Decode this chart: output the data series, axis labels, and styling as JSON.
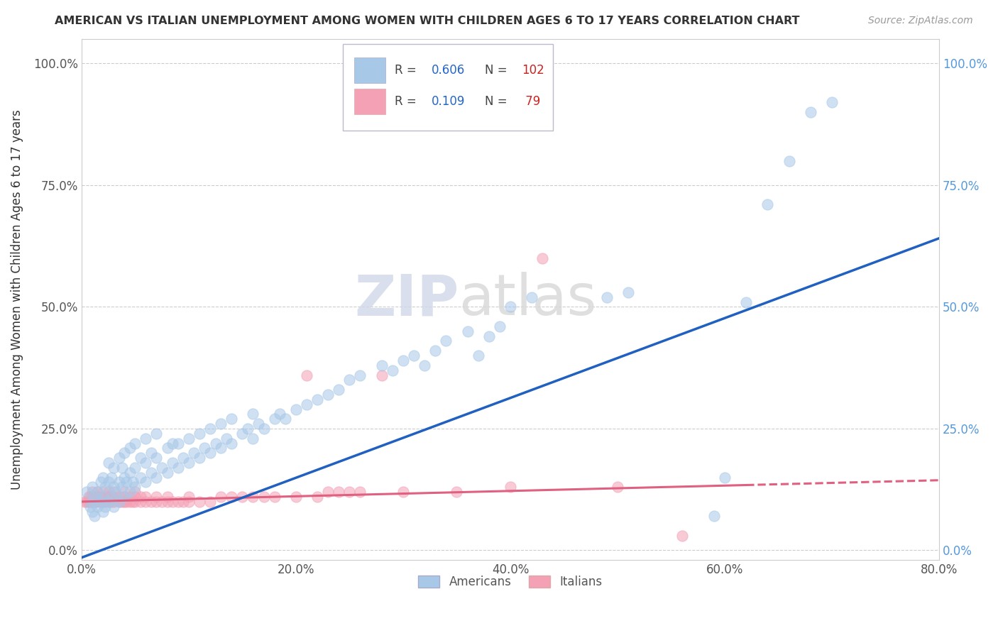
{
  "title": "AMERICAN VS ITALIAN UNEMPLOYMENT AMONG WOMEN WITH CHILDREN AGES 6 TO 17 YEARS CORRELATION CHART",
  "source": "Source: ZipAtlas.com",
  "ylabel": "Unemployment Among Women with Children Ages 6 to 17 years",
  "xmin": 0.0,
  "xmax": 0.8,
  "ymin": -0.02,
  "ymax": 1.05,
  "xticks": [
    0.0,
    0.2,
    0.4,
    0.6,
    0.8
  ],
  "xtick_labels": [
    "0.0%",
    "20.0%",
    "40.0%",
    "60.0%",
    "80.0%"
  ],
  "yticks": [
    0.0,
    0.25,
    0.5,
    0.75,
    1.0
  ],
  "ytick_labels": [
    "0.0%",
    "25.0%",
    "50.0%",
    "75.0%",
    "100.0%"
  ],
  "american_color": "#a8c8e8",
  "italian_color": "#f4a0b5",
  "american_line_color": "#2060c0",
  "italian_line_color": "#e06080",
  "watermark_zip": "ZIP",
  "watermark_atlas": "atlas",
  "background_color": "#ffffff",
  "americans_label": "Americans",
  "italians_label": "Italians",
  "american_slope": 0.82,
  "american_intercept": -0.015,
  "italian_slope": 0.055,
  "italian_intercept": 0.1,
  "american_points": [
    [
      0.005,
      0.12
    ],
    [
      0.008,
      0.09
    ],
    [
      0.01,
      0.08
    ],
    [
      0.01,
      0.1
    ],
    [
      0.01,
      0.13
    ],
    [
      0.012,
      0.07
    ],
    [
      0.012,
      0.11
    ],
    [
      0.015,
      0.09
    ],
    [
      0.015,
      0.12
    ],
    [
      0.018,
      0.1
    ],
    [
      0.018,
      0.14
    ],
    [
      0.02,
      0.08
    ],
    [
      0.02,
      0.11
    ],
    [
      0.02,
      0.15
    ],
    [
      0.022,
      0.09
    ],
    [
      0.022,
      0.13
    ],
    [
      0.025,
      0.1
    ],
    [
      0.025,
      0.14
    ],
    [
      0.025,
      0.18
    ],
    [
      0.028,
      0.11
    ],
    [
      0.028,
      0.15
    ],
    [
      0.03,
      0.09
    ],
    [
      0.03,
      0.13
    ],
    [
      0.03,
      0.17
    ],
    [
      0.032,
      0.12
    ],
    [
      0.035,
      0.1
    ],
    [
      0.035,
      0.14
    ],
    [
      0.035,
      0.19
    ],
    [
      0.038,
      0.13
    ],
    [
      0.038,
      0.17
    ],
    [
      0.04,
      0.11
    ],
    [
      0.04,
      0.15
    ],
    [
      0.04,
      0.2
    ],
    [
      0.042,
      0.14
    ],
    [
      0.045,
      0.12
    ],
    [
      0.045,
      0.16
    ],
    [
      0.045,
      0.21
    ],
    [
      0.048,
      0.14
    ],
    [
      0.05,
      0.13
    ],
    [
      0.05,
      0.17
    ],
    [
      0.05,
      0.22
    ],
    [
      0.055,
      0.15
    ],
    [
      0.055,
      0.19
    ],
    [
      0.06,
      0.14
    ],
    [
      0.06,
      0.18
    ],
    [
      0.06,
      0.23
    ],
    [
      0.065,
      0.16
    ],
    [
      0.065,
      0.2
    ],
    [
      0.07,
      0.15
    ],
    [
      0.07,
      0.19
    ],
    [
      0.07,
      0.24
    ],
    [
      0.075,
      0.17
    ],
    [
      0.08,
      0.16
    ],
    [
      0.08,
      0.21
    ],
    [
      0.085,
      0.18
    ],
    [
      0.085,
      0.22
    ],
    [
      0.09,
      0.17
    ],
    [
      0.09,
      0.22
    ],
    [
      0.095,
      0.19
    ],
    [
      0.1,
      0.18
    ],
    [
      0.1,
      0.23
    ],
    [
      0.105,
      0.2
    ],
    [
      0.11,
      0.19
    ],
    [
      0.11,
      0.24
    ],
    [
      0.115,
      0.21
    ],
    [
      0.12,
      0.2
    ],
    [
      0.12,
      0.25
    ],
    [
      0.125,
      0.22
    ],
    [
      0.13,
      0.21
    ],
    [
      0.13,
      0.26
    ],
    [
      0.135,
      0.23
    ],
    [
      0.14,
      0.22
    ],
    [
      0.14,
      0.27
    ],
    [
      0.15,
      0.24
    ],
    [
      0.155,
      0.25
    ],
    [
      0.16,
      0.23
    ],
    [
      0.16,
      0.28
    ],
    [
      0.165,
      0.26
    ],
    [
      0.17,
      0.25
    ],
    [
      0.18,
      0.27
    ],
    [
      0.185,
      0.28
    ],
    [
      0.19,
      0.27
    ],
    [
      0.2,
      0.29
    ],
    [
      0.21,
      0.3
    ],
    [
      0.22,
      0.31
    ],
    [
      0.23,
      0.32
    ],
    [
      0.24,
      0.33
    ],
    [
      0.25,
      0.35
    ],
    [
      0.26,
      0.36
    ],
    [
      0.28,
      0.38
    ],
    [
      0.29,
      0.37
    ],
    [
      0.3,
      0.39
    ],
    [
      0.31,
      0.4
    ],
    [
      0.32,
      0.38
    ],
    [
      0.33,
      0.41
    ],
    [
      0.34,
      0.43
    ],
    [
      0.36,
      0.45
    ],
    [
      0.37,
      0.4
    ],
    [
      0.38,
      0.44
    ],
    [
      0.39,
      0.46
    ],
    [
      0.4,
      0.5
    ],
    [
      0.42,
      0.52
    ],
    [
      0.49,
      0.52
    ],
    [
      0.51,
      0.53
    ],
    [
      0.59,
      0.07
    ],
    [
      0.6,
      0.15
    ],
    [
      0.62,
      0.51
    ],
    [
      0.64,
      0.71
    ],
    [
      0.66,
      0.8
    ],
    [
      0.68,
      0.9
    ],
    [
      0.7,
      0.92
    ]
  ],
  "italian_points": [
    [
      0.003,
      0.1
    ],
    [
      0.005,
      0.1
    ],
    [
      0.006,
      0.1
    ],
    [
      0.007,
      0.11
    ],
    [
      0.008,
      0.1
    ],
    [
      0.008,
      0.11
    ],
    [
      0.009,
      0.1
    ],
    [
      0.01,
      0.1
    ],
    [
      0.01,
      0.11
    ],
    [
      0.01,
      0.12
    ],
    [
      0.012,
      0.1
    ],
    [
      0.012,
      0.11
    ],
    [
      0.013,
      0.1
    ],
    [
      0.013,
      0.11
    ],
    [
      0.015,
      0.1
    ],
    [
      0.015,
      0.11
    ],
    [
      0.015,
      0.12
    ],
    [
      0.018,
      0.1
    ],
    [
      0.018,
      0.11
    ],
    [
      0.02,
      0.1
    ],
    [
      0.02,
      0.11
    ],
    [
      0.02,
      0.12
    ],
    [
      0.022,
      0.1
    ],
    [
      0.022,
      0.11
    ],
    [
      0.025,
      0.1
    ],
    [
      0.025,
      0.11
    ],
    [
      0.025,
      0.12
    ],
    [
      0.028,
      0.1
    ],
    [
      0.028,
      0.11
    ],
    [
      0.03,
      0.1
    ],
    [
      0.03,
      0.11
    ],
    [
      0.03,
      0.12
    ],
    [
      0.035,
      0.1
    ],
    [
      0.035,
      0.11
    ],
    [
      0.038,
      0.1
    ],
    [
      0.04,
      0.1
    ],
    [
      0.04,
      0.11
    ],
    [
      0.04,
      0.12
    ],
    [
      0.042,
      0.1
    ],
    [
      0.045,
      0.1
    ],
    [
      0.045,
      0.11
    ],
    [
      0.048,
      0.1
    ],
    [
      0.05,
      0.1
    ],
    [
      0.05,
      0.11
    ],
    [
      0.05,
      0.12
    ],
    [
      0.055,
      0.1
    ],
    [
      0.055,
      0.11
    ],
    [
      0.06,
      0.1
    ],
    [
      0.06,
      0.11
    ],
    [
      0.065,
      0.1
    ],
    [
      0.07,
      0.1
    ],
    [
      0.07,
      0.11
    ],
    [
      0.075,
      0.1
    ],
    [
      0.08,
      0.1
    ],
    [
      0.08,
      0.11
    ],
    [
      0.085,
      0.1
    ],
    [
      0.09,
      0.1
    ],
    [
      0.095,
      0.1
    ],
    [
      0.1,
      0.1
    ],
    [
      0.1,
      0.11
    ],
    [
      0.11,
      0.1
    ],
    [
      0.12,
      0.1
    ],
    [
      0.13,
      0.11
    ],
    [
      0.14,
      0.11
    ],
    [
      0.15,
      0.11
    ],
    [
      0.16,
      0.11
    ],
    [
      0.17,
      0.11
    ],
    [
      0.18,
      0.11
    ],
    [
      0.2,
      0.11
    ],
    [
      0.21,
      0.36
    ],
    [
      0.22,
      0.11
    ],
    [
      0.23,
      0.12
    ],
    [
      0.24,
      0.12
    ],
    [
      0.25,
      0.12
    ],
    [
      0.26,
      0.12
    ],
    [
      0.28,
      0.36
    ],
    [
      0.3,
      0.12
    ],
    [
      0.35,
      0.12
    ],
    [
      0.4,
      0.13
    ],
    [
      0.43,
      0.6
    ],
    [
      0.5,
      0.13
    ],
    [
      0.56,
      0.03
    ]
  ]
}
